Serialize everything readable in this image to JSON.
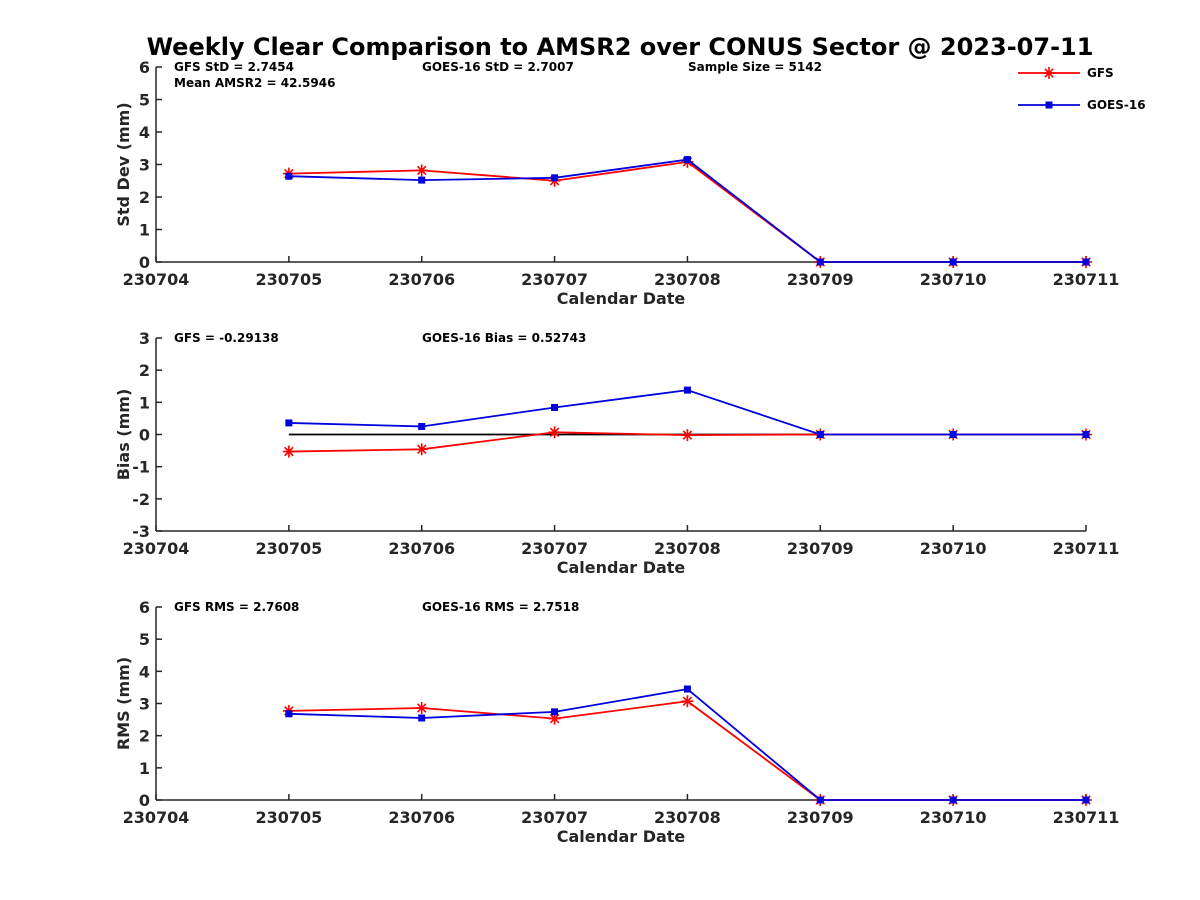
{
  "title": "Weekly Clear Comparison to AMSR2 over CONUS Sector @ 2023-07-11",
  "legend": {
    "placement": "top-right",
    "entries": [
      "GFS",
      "GOES-16"
    ]
  },
  "colors": {
    "GFS": "#ff0000",
    "GOES-16": "#0000dd",
    "zero_line": "#000000",
    "axis": "#262626"
  },
  "chart_data": [
    {
      "type": "line",
      "ylabel": "Std Dev (mm)",
      "xlabel": "Calendar Date",
      "x_ticks": [
        "230704",
        "230705",
        "230706",
        "230707",
        "230708",
        "230709",
        "230710",
        "230711"
      ],
      "ylim": [
        0,
        6
      ],
      "y_ticks": [
        "0",
        "1",
        "2",
        "3",
        "4",
        "5",
        "6"
      ],
      "stats": [
        "GFS StD = 2.7454",
        "GOES-16 StD = 2.7007",
        "Sample Size = 5142",
        "Mean AMSR2 = 42.5946"
      ],
      "zero_line": false,
      "series": [
        {
          "name": "GFS",
          "values": [
            null,
            2.72,
            2.82,
            2.5,
            3.08,
            0,
            0,
            0
          ]
        },
        {
          "name": "GOES-16",
          "values": [
            null,
            2.64,
            2.52,
            2.59,
            3.15,
            0,
            0,
            0
          ]
        }
      ]
    },
    {
      "type": "line",
      "ylabel": "Bias (mm)",
      "xlabel": "Calendar Date",
      "x_ticks": [
        "230704",
        "230705",
        "230706",
        "230707",
        "230708",
        "230709",
        "230710",
        "230711"
      ],
      "ylim": [
        -3,
        3
      ],
      "y_ticks": [
        "-3",
        "-2",
        "-1",
        "0",
        "1",
        "2",
        "3"
      ],
      "stats": [
        "GFS = -0.29138",
        "GOES-16 Bias  = 0.52743"
      ],
      "zero_line": true,
      "series": [
        {
          "name": "GFS",
          "values": [
            null,
            -0.53,
            -0.46,
            0.07,
            -0.02,
            0,
            0,
            0
          ]
        },
        {
          "name": "GOES-16",
          "values": [
            null,
            0.36,
            0.25,
            0.84,
            1.38,
            0,
            0,
            0
          ]
        }
      ]
    },
    {
      "type": "line",
      "ylabel": "RMS (mm)",
      "xlabel": "Calendar Date",
      "x_ticks": [
        "230704",
        "230705",
        "230706",
        "230707",
        "230708",
        "230709",
        "230710",
        "230711"
      ],
      "ylim": [
        0,
        6
      ],
      "y_ticks": [
        "0",
        "1",
        "2",
        "3",
        "4",
        "5",
        "6"
      ],
      "stats": [
        "GFS RMS = 2.7608",
        "GOES-16 RMS = 2.7518"
      ],
      "zero_line": false,
      "series": [
        {
          "name": "GFS",
          "values": [
            null,
            2.77,
            2.86,
            2.53,
            3.07,
            0,
            0,
            0
          ]
        },
        {
          "name": "GOES-16",
          "values": [
            null,
            2.68,
            2.55,
            2.74,
            3.45,
            0,
            0,
            0
          ]
        }
      ]
    }
  ]
}
